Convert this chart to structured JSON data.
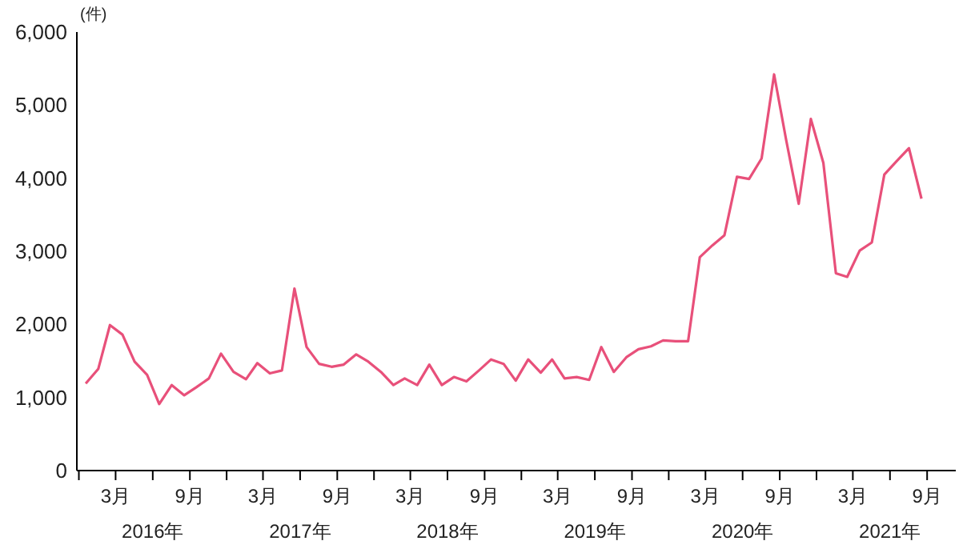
{
  "chart_data": {
    "type": "line",
    "ylabel": "(件)",
    "x": [
      "2016-01",
      "2016-02",
      "2016-03",
      "2016-04",
      "2016-05",
      "2016-06",
      "2016-07",
      "2016-08",
      "2016-09",
      "2016-10",
      "2016-11",
      "2016-12",
      "2017-01",
      "2017-02",
      "2017-03",
      "2017-04",
      "2017-05",
      "2017-06",
      "2017-07",
      "2017-08",
      "2017-09",
      "2017-10",
      "2017-11",
      "2017-12",
      "2018-01",
      "2018-02",
      "2018-03",
      "2018-04",
      "2018-05",
      "2018-06",
      "2018-07",
      "2018-08",
      "2018-09",
      "2018-10",
      "2018-11",
      "2018-12",
      "2019-01",
      "2019-02",
      "2019-03",
      "2019-04",
      "2019-05",
      "2019-06",
      "2019-07",
      "2019-08",
      "2019-09",
      "2019-10",
      "2019-11",
      "2019-12",
      "2020-01",
      "2020-02",
      "2020-03",
      "2020-04",
      "2020-05",
      "2020-06",
      "2020-07",
      "2020-08",
      "2020-09",
      "2020-10",
      "2020-11",
      "2020-12",
      "2021-01",
      "2021-02",
      "2021-03",
      "2021-04",
      "2021-05",
      "2021-06",
      "2021-07",
      "2021-08",
      "2021-09"
    ],
    "series": [
      {
        "color": "#e8507a",
        "values": [
          1190,
          1390,
          1990,
          1860,
          1490,
          1310,
          910,
          1170,
          1030,
          1140,
          1260,
          1600,
          1350,
          1250,
          1470,
          1330,
          1370,
          2490,
          1690,
          1460,
          1420,
          1450,
          1590,
          1490,
          1350,
          1170,
          1260,
          1170,
          1450,
          1170,
          1280,
          1220,
          1370,
          1520,
          1460,
          1230,
          1520,
          1340,
          1520,
          1260,
          1280,
          1240,
          1690,
          1350,
          1550,
          1660,
          1700,
          1780,
          1770,
          1770,
          2920,
          3080,
          3220,
          4020,
          3990,
          4270,
          5420,
          4520,
          3650,
          4810,
          4210,
          2700,
          2650,
          3010,
          3120,
          4050,
          4230,
          4410,
          3720
        ]
      }
    ],
    "xlim": [
      "2015-12-10",
      "2021-11-25"
    ],
    "xticks": [
      {
        "value": "2015-12-15",
        "label": null
      },
      {
        "value": "2016-03-15",
        "label": "3月"
      },
      {
        "value": "2016-06-15",
        "label": null
      },
      {
        "value": "2016-09-15",
        "label": "9月"
      },
      {
        "value": "2016-12-15",
        "label": null
      },
      {
        "value": "2017-03-15",
        "label": "3月"
      },
      {
        "value": "2017-06-15",
        "label": null
      },
      {
        "value": "2017-09-15",
        "label": "9月"
      },
      {
        "value": "2017-12-15",
        "label": null
      },
      {
        "value": "2018-03-15",
        "label": "3月"
      },
      {
        "value": "2018-06-15",
        "label": null
      },
      {
        "value": "2018-09-15",
        "label": "9月"
      },
      {
        "value": "2018-12-15",
        "label": null
      },
      {
        "value": "2019-03-15",
        "label": "3月"
      },
      {
        "value": "2019-06-15",
        "label": null
      },
      {
        "value": "2019-09-15",
        "label": "9月"
      },
      {
        "value": "2019-12-15",
        "label": null
      },
      {
        "value": "2020-03-15",
        "label": "3月"
      },
      {
        "value": "2020-06-15",
        "label": null
      },
      {
        "value": "2020-09-15",
        "label": "9月"
      },
      {
        "value": "2020-12-15",
        "label": null
      },
      {
        "value": "2021-03-15",
        "label": "3月"
      },
      {
        "value": "2021-06-15",
        "label": null
      },
      {
        "value": "2021-09-15",
        "label": "9月"
      }
    ],
    "annotations": [
      "2016年",
      "2017年",
      "2018年",
      "2019年",
      "2020年",
      "2021年"
    ],
    "ylim": [
      0,
      6000
    ],
    "yticks": [
      {
        "value": 0,
        "label": "0"
      },
      {
        "value": 1000,
        "label": "1,000"
      },
      {
        "value": 2000,
        "label": "2,000"
      },
      {
        "value": 3000,
        "label": "3,000"
      },
      {
        "value": 4000,
        "label": "4,000"
      },
      {
        "value": 5000,
        "label": "5,000"
      },
      {
        "value": 6000,
        "label": "6,000"
      }
    ],
    "marker": "none",
    "line_style": "solid"
  }
}
